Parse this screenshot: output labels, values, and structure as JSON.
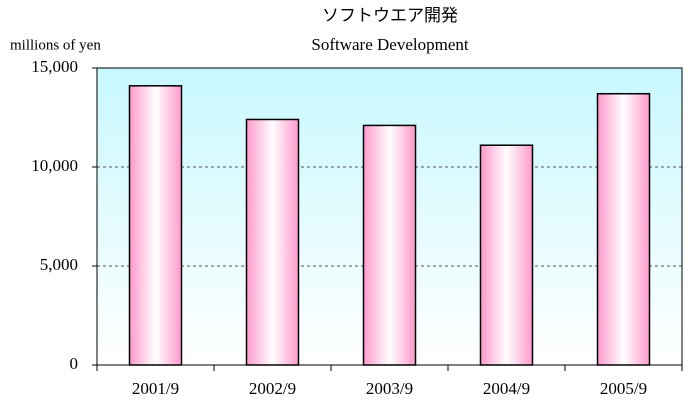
{
  "chart_data": {
    "type": "bar",
    "title": "ソフトウエア開発",
    "subtitle": "Software Development",
    "y_axis_label": "millions of yen",
    "categories": [
      "2001/9",
      "2002/9",
      "2003/9",
      "2004/9",
      "2005/9"
    ],
    "values": [
      14100,
      12400,
      12100,
      11100,
      13700
    ],
    "color": "#ff99cc",
    "ylim": [
      0,
      15000
    ],
    "yticks": [
      0,
      {
        "value": 5000,
        "label": "5,000"
      },
      {
        "value": 10000,
        "label": "10,000"
      },
      {
        "value": 15000,
        "label": "15,000"
      }
    ],
    "grid": true
  }
}
